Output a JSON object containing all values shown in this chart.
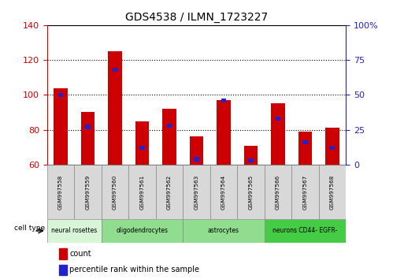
{
  "title": "GDS4538 / ILMN_1723227",
  "samples": [
    "GSM997558",
    "GSM997559",
    "GSM997560",
    "GSM997561",
    "GSM997562",
    "GSM997563",
    "GSM997564",
    "GSM997565",
    "GSM997566",
    "GSM997567",
    "GSM997568"
  ],
  "count_values": [
    104,
    90,
    125,
    85,
    92,
    76,
    97,
    71,
    95,
    79,
    81
  ],
  "percentile_values": [
    50,
    27,
    68,
    12,
    28,
    4,
    46,
    3,
    33,
    16,
    12
  ],
  "ylim_left": [
    60,
    140
  ],
  "ylim_right": [
    0,
    100
  ],
  "yticks_left": [
    60,
    80,
    100,
    120,
    140
  ],
  "yticks_right": [
    0,
    25,
    50,
    75,
    100
  ],
  "yticklabels_right": [
    "0",
    "25",
    "50",
    "75",
    "100%"
  ],
  "bar_color_count": "#cc0000",
  "bar_color_percentile": "#2222cc",
  "bar_width": 0.5,
  "percentile_bar_width": 0.18,
  "tick_color_left": "#cc0000",
  "tick_color_right": "#2222cc",
  "cell_type_label": "cell type",
  "legend_count": "count",
  "legend_percentile": "percentile rank within the sample",
  "cell_type_info": [
    {
      "label": "neural rosettes",
      "span": [
        0,
        2
      ],
      "color": "#d8f5d8"
    },
    {
      "label": "oligodendrocytes",
      "span": [
        2,
        5
      ],
      "color": "#90dd90"
    },
    {
      "label": "astrocytes",
      "span": [
        5,
        8
      ],
      "color": "#90dd90"
    },
    {
      "label": "neurons CD44- EGFR-",
      "span": [
        8,
        11
      ],
      "color": "#44cc44"
    }
  ]
}
